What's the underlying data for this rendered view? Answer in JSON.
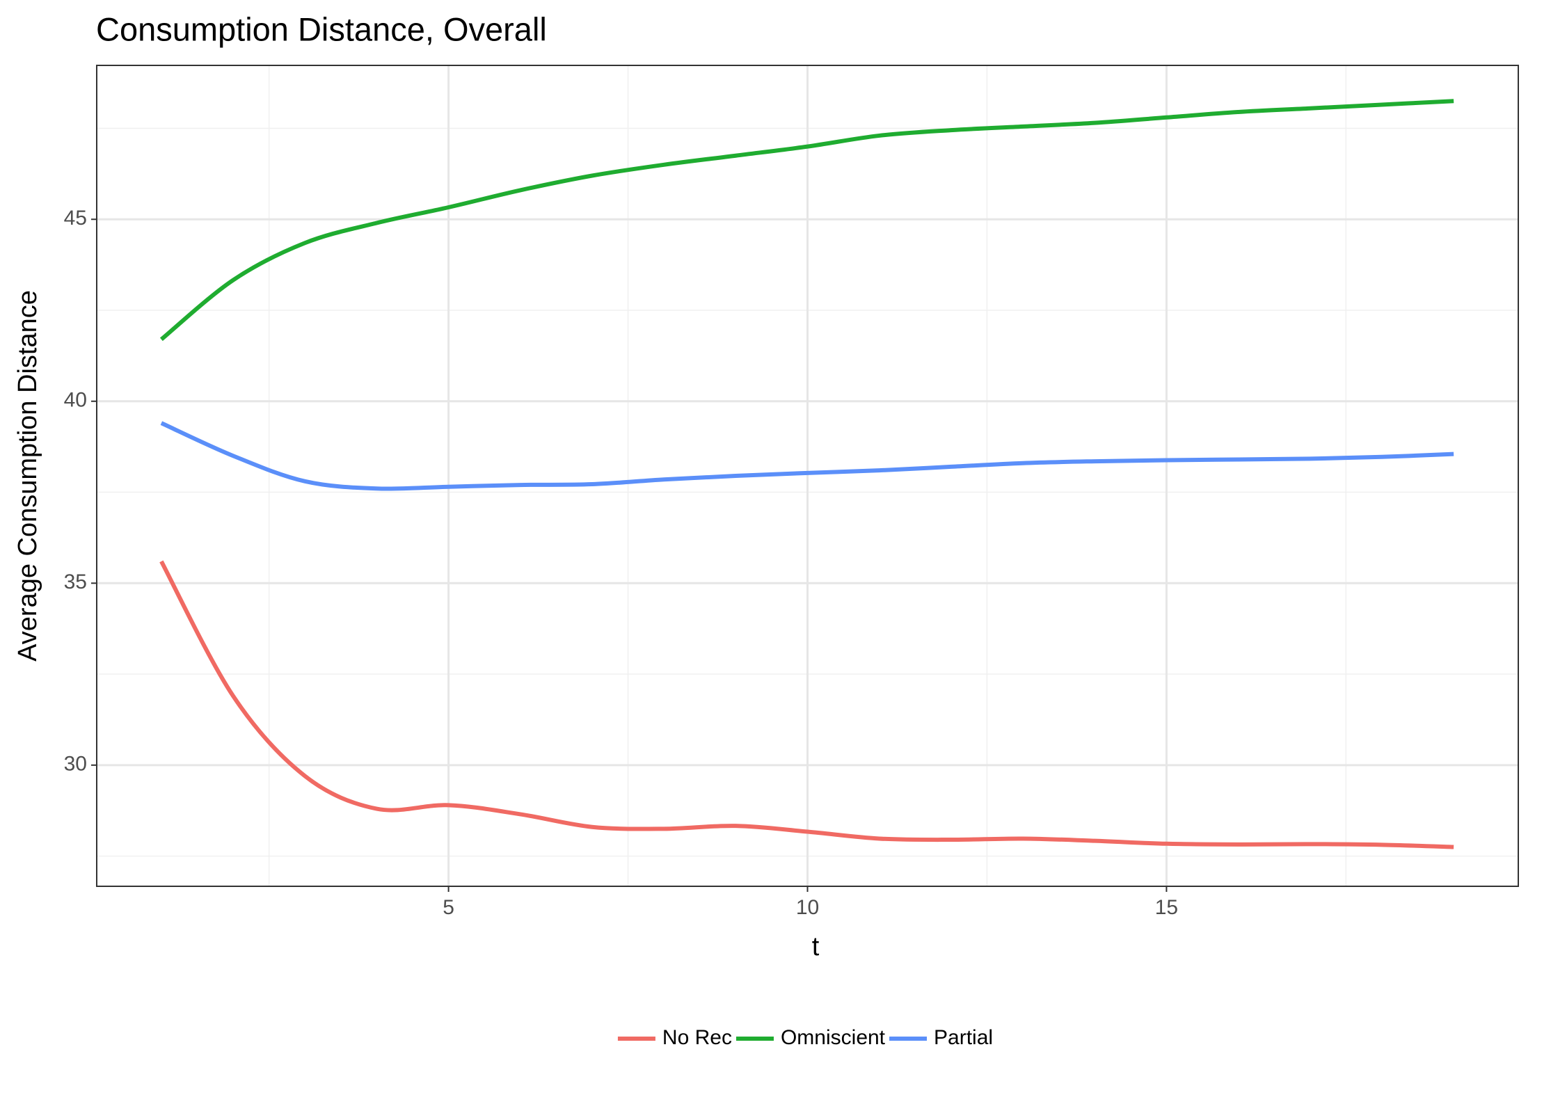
{
  "chart_data": {
    "type": "line",
    "title": "Consumption Distance, Overall",
    "x_label": "t",
    "y_label": "Average Consumption Distance",
    "x": [
      1,
      2,
      3,
      4,
      5,
      6,
      7,
      8,
      9,
      10,
      11,
      12,
      13,
      14,
      15,
      16,
      17,
      18,
      19
    ],
    "series": [
      {
        "name": "No Rec",
        "color": "#f06a63",
        "values": [
          35.6,
          31.9,
          29.7,
          28.8,
          28.9,
          28.65,
          28.3,
          28.25,
          28.33,
          28.17,
          27.98,
          27.95,
          27.98,
          27.92,
          27.84,
          27.82,
          27.83,
          27.81,
          27.75
        ]
      },
      {
        "name": "Omniscient",
        "color": "#1fac30",
        "values": [
          41.7,
          43.33,
          44.35,
          44.9,
          45.33,
          45.8,
          46.2,
          46.5,
          46.75,
          47.0,
          47.3,
          47.45,
          47.55,
          47.65,
          47.8,
          47.95,
          48.05,
          48.15,
          48.25
        ]
      },
      {
        "name": "Partial",
        "color": "#5b8ff9",
        "values": [
          39.4,
          38.5,
          37.8,
          37.6,
          37.65,
          37.7,
          37.72,
          37.85,
          37.95,
          38.03,
          38.1,
          38.2,
          38.3,
          38.35,
          38.38,
          38.4,
          38.42,
          38.47,
          38.55
        ]
      }
    ],
    "xlim": [
      0.1,
      19.9
    ],
    "xticks": [
      5,
      10,
      15
    ],
    "ylim": [
      26.67,
      49.23
    ],
    "yticks": [
      30,
      35,
      40,
      45
    ],
    "grid": true,
    "legend": "bottom"
  }
}
